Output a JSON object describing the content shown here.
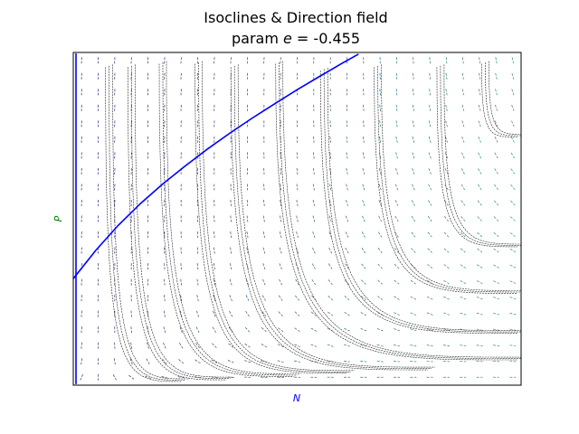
{
  "chart_data": {
    "type": "line",
    "title": "Isoclines & Direction field",
    "subtitle_prefix": "param ",
    "subtitle_var": "e",
    "subtitle_suffix": " = -0.455",
    "xlabel": "N",
    "ylabel": "P",
    "xlabel_color": "#0000ff",
    "ylabel_color": "#008000",
    "xticks": [],
    "yticks": [],
    "grid": false,
    "xlim": [
      0,
      1
    ],
    "ylim": [
      0,
      1
    ],
    "series": [
      {
        "role": "N-isocline",
        "color": "#0000ff",
        "x": [
          0.006,
          0.006
        ],
        "y": [
          0.003,
          0.997
        ]
      },
      {
        "role": "P-isocline",
        "color": "#0000ff",
        "x": [
          0,
          0.05,
          0.1,
          0.15,
          0.2,
          0.25,
          0.3,
          0.35,
          0.4,
          0.45,
          0.5,
          0.55,
          0.6,
          0.637
        ],
        "y": [
          0.32,
          0.405,
          0.48,
          0.546,
          0.605,
          0.659,
          0.71,
          0.758,
          0.803,
          0.846,
          0.888,
          0.928,
          0.967,
          0.995
        ]
      }
    ],
    "trajectories": [
      {
        "start": [
          0.08,
          0.96
        ],
        "end": [
          0.25,
          0.015
        ]
      },
      {
        "start": [
          0.13,
          0.96
        ],
        "end": [
          0.35,
          0.02
        ]
      },
      {
        "start": [
          0.2,
          0.97
        ],
        "end": [
          0.5,
          0.03
        ]
      },
      {
        "start": [
          0.28,
          0.97
        ],
        "end": [
          0.62,
          0.04
        ]
      },
      {
        "start": [
          0.36,
          0.96
        ],
        "end": [
          0.8,
          0.05
        ]
      },
      {
        "start": [
          0.46,
          0.97
        ],
        "end": [
          1.0,
          0.08
        ]
      },
      {
        "start": [
          0.56,
          0.95
        ],
        "end": [
          1.0,
          0.16
        ]
      },
      {
        "start": [
          0.68,
          0.96
        ],
        "end": [
          1.0,
          0.28
        ]
      },
      {
        "start": [
          0.82,
          0.96
        ],
        "end": [
          1.0,
          0.42
        ]
      },
      {
        "start": [
          0.92,
          0.97
        ],
        "end": [
          1.0,
          0.75
        ]
      }
    ],
    "direction_field": {
      "columns": 27,
      "rows": 21,
      "color_low": "#2a1a7a",
      "color_high": "#2aa08a"
    }
  }
}
